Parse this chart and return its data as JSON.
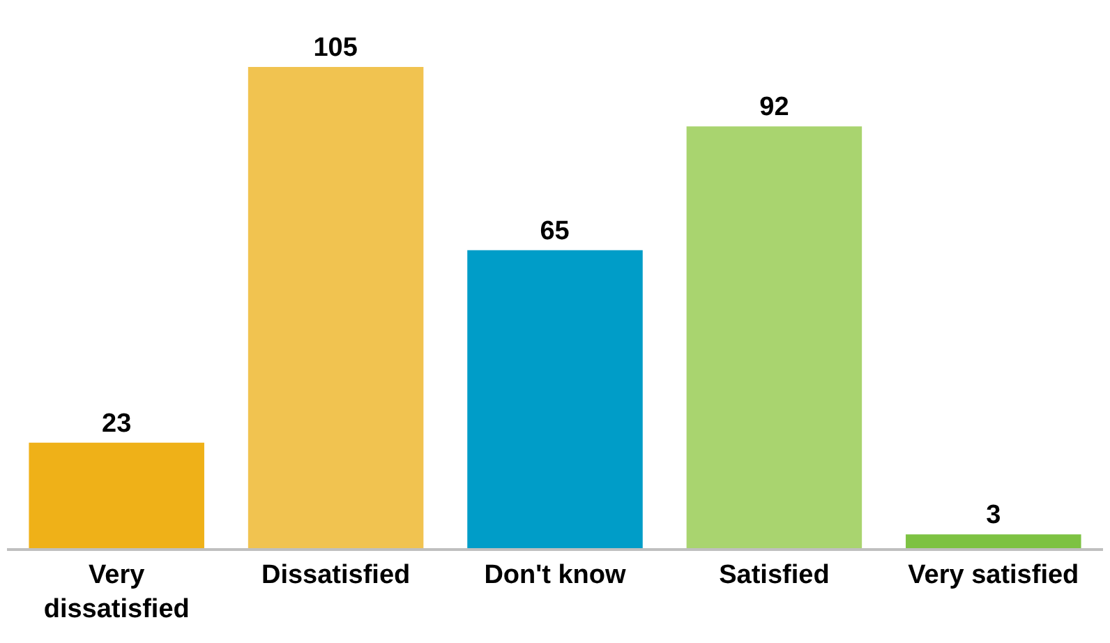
{
  "chart_data": {
    "type": "bar",
    "categories": [
      "Very dissatisfied",
      "Dissatisfied",
      "Don't know",
      "Satisfied",
      "Very satisfied"
    ],
    "values": [
      23,
      105,
      65,
      92,
      3
    ],
    "colors": [
      "#efb118",
      "#f1c350",
      "#009dc8",
      "#a9d46f",
      "#7dc242"
    ],
    "data_labels": true
  }
}
